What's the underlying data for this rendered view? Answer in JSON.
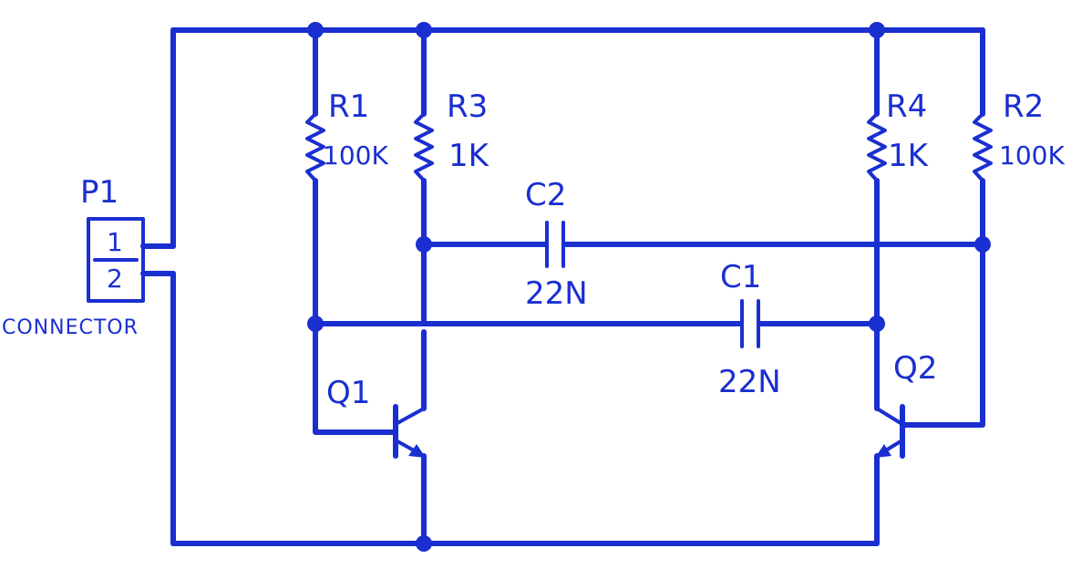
{
  "colors": {
    "ink": "#1a2fd0",
    "background": "#ffffff"
  },
  "labels": {
    "p1": {
      "name": "P1",
      "pin1": "1",
      "pin2": "2",
      "caption": "CONNECTOR"
    },
    "r1": {
      "name": "R1",
      "value": "100K"
    },
    "r2": {
      "name": "R2",
      "value": "100K"
    },
    "r3": {
      "name": "R3",
      "value": "1K"
    },
    "r4": {
      "name": "R4",
      "value": "1K"
    },
    "c1": {
      "name": "C1",
      "value": "22N"
    },
    "c2": {
      "name": "C2",
      "value": "22N"
    },
    "q1": {
      "name": "Q1"
    },
    "q2": {
      "name": "Q2"
    }
  }
}
